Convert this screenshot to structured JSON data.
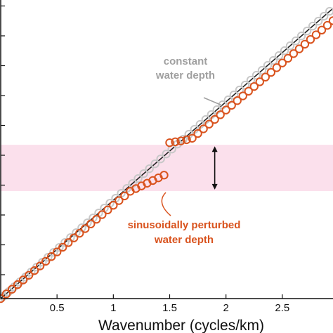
{
  "chart_data": {
    "type": "scatter",
    "title": "",
    "xlabel": "Wavenumber (cycles/km)",
    "ylabel": "",
    "xlim": [
      0,
      2.95
    ],
    "ylim": [
      0,
      1
    ],
    "xticks": [
      {
        "value": 0.5,
        "label": "0.5"
      },
      {
        "value": 1,
        "label": "1"
      },
      {
        "value": 1.5,
        "label": "1.5"
      },
      {
        "value": 2,
        "label": "2"
      },
      {
        "value": 2.5,
        "label": "2.5"
      }
    ],
    "yticks": [
      0.08,
      0.18,
      0.28,
      0.38,
      0.48,
      0.58,
      0.68,
      0.78,
      0.88,
      0.98
    ],
    "band": {
      "y_low": 0.36,
      "y_high": 0.515,
      "color": "#fbe0ec"
    },
    "arrow": {
      "x": 1.9,
      "y_from": 0.365,
      "y_to": 0.51,
      "color": "#111111"
    },
    "series": [
      {
        "kind": "line",
        "color": "#222222",
        "slope_per_x": 0.3295,
        "intercept": 0
      },
      {
        "kind": "markers",
        "color": "#c8c8c8",
        "marker": "open-circle",
        "x_start": 0.02,
        "x_end": 2.95,
        "x_step": 0.05,
        "slope_per_x": 0.3295,
        "intercept": 0
      },
      {
        "kind": "markers",
        "color": "#d9531e",
        "marker": "open-circle",
        "x_start": 0.0,
        "x_end": 1.47,
        "x_step": 0.05,
        "slope_per_x": 0.3125,
        "intercept": 0,
        "bend_start": 1.2,
        "bend_slope": 0.18
      },
      {
        "kind": "markers",
        "color": "#d9531e",
        "marker": "open-circle",
        "x_start": 1.5,
        "x_end": 2.95,
        "x_step": 0.05,
        "points_head": [
          [
            1.5,
            0.522
          ],
          [
            1.55,
            0.525
          ],
          [
            1.6,
            0.528
          ],
          [
            1.65,
            0.532
          ],
          [
            1.7,
            0.537
          ]
        ],
        "tail_slope": 0.315,
        "tail_intercept": -0.0
      }
    ],
    "annotations": [
      {
        "lines": [
          "constant",
          "water depth"
        ],
        "color": "#a0a0a0"
      },
      {
        "lines": [
          "sinusoidally perturbed",
          "water depth"
        ],
        "color": "#d9531e"
      }
    ]
  }
}
